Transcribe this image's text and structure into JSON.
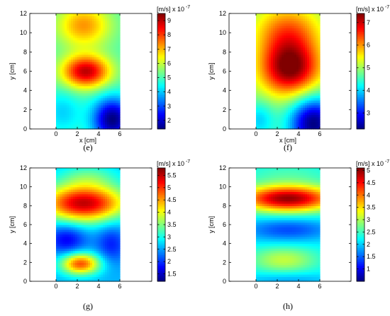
{
  "chart_data": [
    {
      "type": "heatmap",
      "caption": "(e)",
      "xlabel": "x [cm]",
      "ylabel": "y [cm]",
      "x_ticks": [
        0,
        2,
        4,
        6
      ],
      "y_ticks": [
        0,
        2,
        4,
        6,
        8,
        10,
        12
      ],
      "xlim": [
        0,
        6
      ],
      "ylim": [
        0,
        12
      ],
      "colorbar": {
        "unit": "[m/s]",
        "multiplier": "x 10",
        "exponent": "-7",
        "range": [
          1.4,
          9.5
        ],
        "ticks": [
          2,
          3,
          4,
          5,
          6,
          7,
          8,
          9
        ]
      },
      "colormap": "jet",
      "field": {
        "base": 5.0,
        "blobs": [
          {
            "x": 2.8,
            "y": 6.0,
            "sx": 1.6,
            "sy": 1.2,
            "a": 4.0
          },
          {
            "x": 2.6,
            "y": 10.8,
            "sx": 1.8,
            "sy": 1.6,
            "a": 2.3
          },
          {
            "x": 5.3,
            "y": 1.0,
            "sx": 1.3,
            "sy": 1.6,
            "a": -3.6
          },
          {
            "x": 0.6,
            "y": 1.8,
            "sx": 1.2,
            "sy": 1.6,
            "a": -0.9
          }
        ]
      }
    },
    {
      "type": "heatmap",
      "caption": "(f)",
      "xlabel": "x [cm]",
      "ylabel": "y [cm]",
      "x_ticks": [
        0,
        2,
        4,
        6
      ],
      "y_ticks": [
        0,
        2,
        4,
        6,
        8,
        10,
        12
      ],
      "xlim": [
        0,
        6
      ],
      "ylim": [
        0,
        12
      ],
      "colorbar": {
        "unit": "[m/s]",
        "multiplier": "x 10",
        "exponent": "-7",
        "range": [
          2.3,
          7.4
        ],
        "ticks": [
          3,
          4,
          5,
          6,
          7
        ]
      },
      "colormap": "jet",
      "field": {
        "base": 4.8,
        "blobs": [
          {
            "x": 3.2,
            "y": 6.3,
            "sx": 2.0,
            "sy": 2.0,
            "a": 2.6
          },
          {
            "x": 3.0,
            "y": 10.2,
            "sx": 2.2,
            "sy": 2.0,
            "a": 1.4
          },
          {
            "x": 5.4,
            "y": 0.6,
            "sx": 1.6,
            "sy": 2.0,
            "a": -2.5
          },
          {
            "x": 0.3,
            "y": 1.0,
            "sx": 1.0,
            "sy": 1.4,
            "a": -0.8
          }
        ]
      }
    },
    {
      "type": "heatmap",
      "caption": "(g)",
      "xlabel": "",
      "ylabel": "y [cm]",
      "x_ticks": [
        0,
        2,
        4,
        6
      ],
      "y_ticks": [
        0,
        2,
        4,
        6,
        8,
        10,
        12
      ],
      "xlim": [
        0,
        6
      ],
      "ylim": [
        0,
        12
      ],
      "colorbar": {
        "unit": "[m/s]",
        "multiplier": "x 10",
        "exponent": "-7",
        "range": [
          1.2,
          5.8
        ],
        "ticks": [
          1.5,
          2,
          2.5,
          3,
          3.5,
          4,
          4.5,
          5,
          5.5
        ]
      },
      "colormap": "jet",
      "field": {
        "base": 2.6,
        "blobs": [
          {
            "x": 2.6,
            "y": 8.3,
            "sx": 2.8,
            "sy": 1.4,
            "a": 2.9
          },
          {
            "x": 3.0,
            "y": 11.2,
            "sx": 2.0,
            "sy": 1.0,
            "a": 0.6
          },
          {
            "x": 2.3,
            "y": 1.9,
            "sx": 1.3,
            "sy": 0.8,
            "a": 2.3
          },
          {
            "x": 1.0,
            "y": 4.5,
            "sx": 1.3,
            "sy": 1.2,
            "a": -0.9
          },
          {
            "x": 5.2,
            "y": 4.0,
            "sx": 1.0,
            "sy": 1.5,
            "a": -0.7
          }
        ]
      }
    },
    {
      "type": "heatmap",
      "caption": "(h)",
      "xlabel": "",
      "ylabel": "y [cm]",
      "x_ticks": [
        0,
        2,
        4,
        6
      ],
      "y_ticks": [
        0,
        2,
        4,
        6,
        8,
        10,
        12
      ],
      "xlim": [
        0,
        6
      ],
      "ylim": [
        0,
        12
      ],
      "colorbar": {
        "unit": "[m/s]",
        "multiplier": "x 10",
        "exponent": "-7",
        "range": [
          0.5,
          5.1
        ],
        "ticks": [
          1,
          1.5,
          2,
          2.5,
          3,
          3.5,
          4,
          4.5,
          5
        ]
      },
      "colormap": "jet",
      "field": {
        "base": 2.2,
        "blobs": [
          {
            "x": 3.0,
            "y": 8.8,
            "sx": 3.2,
            "sy": 1.0,
            "a": 2.8
          },
          {
            "x": 3.0,
            "y": 11.5,
            "sx": 3.0,
            "sy": 0.9,
            "a": 0.3
          },
          {
            "x": 2.6,
            "y": 2.3,
            "sx": 2.2,
            "sy": 1.0,
            "a": 0.9
          },
          {
            "x": 3.0,
            "y": 5.5,
            "sx": 3.0,
            "sy": 0.9,
            "a": -0.8
          },
          {
            "x": 3.0,
            "y": 0.2,
            "sx": 3.0,
            "sy": 0.6,
            "a": -0.4
          }
        ]
      }
    }
  ]
}
